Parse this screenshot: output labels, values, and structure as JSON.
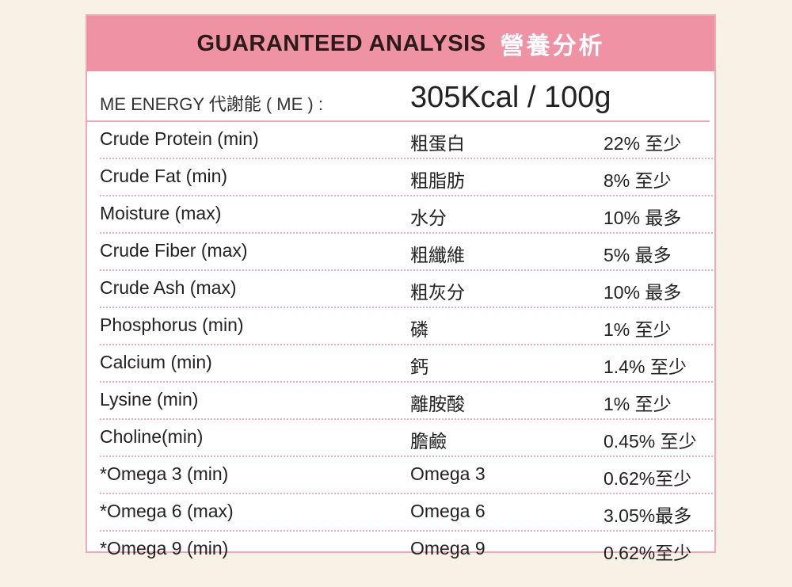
{
  "header": {
    "title": "GUARANTEED ANALYSIS",
    "title_zh": "營養分析"
  },
  "energy": {
    "label": "ME ENERGY 代謝能 ( ME ) :",
    "value": "305Kcal / 100g"
  },
  "table": {
    "rows": [
      [
        "Crude Protein (min)",
        "粗蛋白",
        "22% 至少"
      ],
      [
        "Crude Fat (min)",
        "粗脂肪",
        "8% 至少"
      ],
      [
        "Moisture (max)",
        "水分",
        "10% 最多"
      ],
      [
        "Crude Fiber (max)",
        "粗纖維",
        "5% 最多"
      ],
      [
        "Crude Ash (max)",
        "粗灰分",
        "10% 最多"
      ],
      [
        "Phosphorus (min)",
        "磷",
        "1% 至少"
      ],
      [
        "Calcium (min)",
        "鈣",
        "1.4% 至少"
      ],
      [
        "Lysine (min)",
        "離胺酸",
        "1% 至少"
      ],
      [
        "Choline(min)",
        "膽鹼",
        "0.45% 至少"
      ],
      [
        "*Omega 3 (min)",
        "Omega 3",
        "0.62%至少"
      ],
      [
        "*Omega 6 (max)",
        "Omega 6",
        "3.05%最多"
      ],
      [
        "*Omega 9 (min)",
        "Omega 9",
        "0.62%至少"
      ]
    ]
  }
}
